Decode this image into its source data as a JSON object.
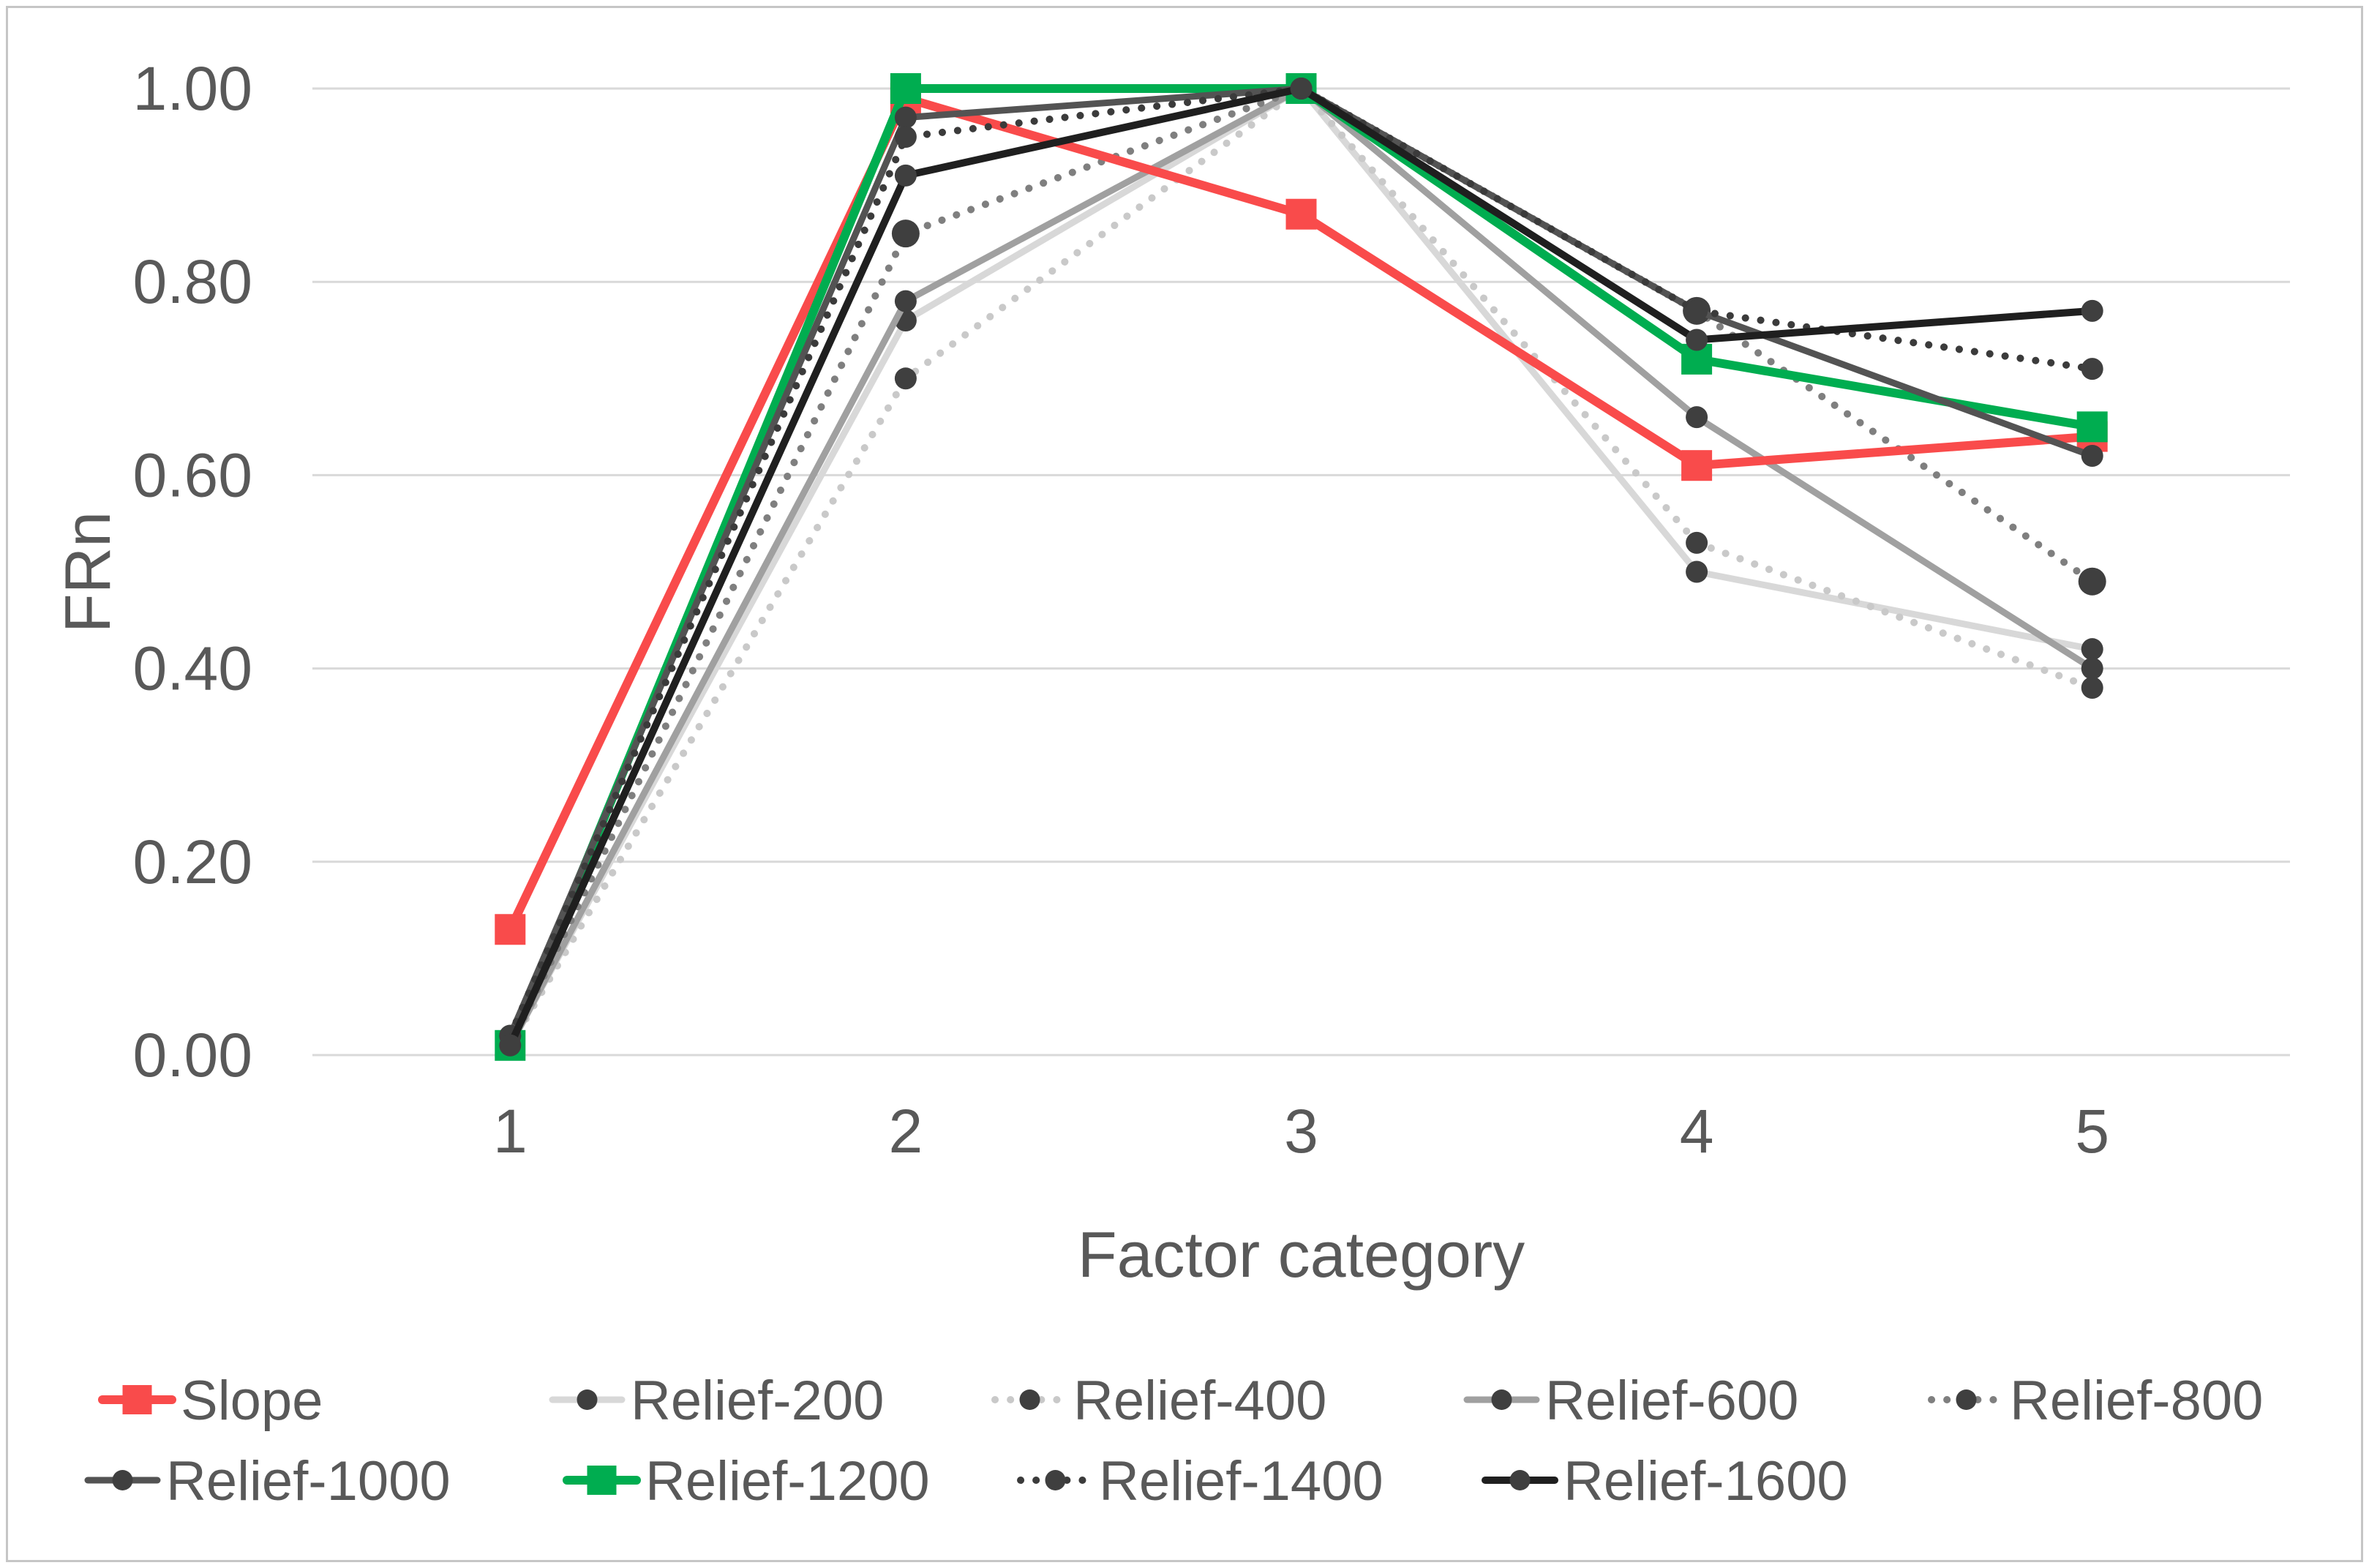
{
  "styles": {
    "grid_color": "#d9d9d9",
    "text_color": "#595959",
    "marker_color": "#3f3f3f",
    "frame_color": "#c6c6c6",
    "background": "#ffffff"
  },
  "chart_data": {
    "type": "line",
    "x": [
      1,
      2,
      3,
      4,
      5
    ],
    "xlabel": "Factor category",
    "ylabel": "FRn",
    "ylim": [
      0.0,
      1.0
    ],
    "grid": true,
    "legend_position": "bottom",
    "yticks": [
      "0.00",
      "0.20",
      "0.40",
      "0.60",
      "0.80",
      "1.00"
    ],
    "ytick_values": [
      0.0,
      0.2,
      0.4,
      0.6,
      0.8,
      1.0
    ],
    "series": [
      {
        "name": "Slope",
        "color": "#f94b4b",
        "line": "solid",
        "marker": "square",
        "values": [
          0.13,
          0.99,
          0.87,
          0.61,
          0.64
        ]
      },
      {
        "name": "Relief-200",
        "color": "#d8d8d8",
        "line": "solid",
        "marker": "circle",
        "values": [
          0.01,
          0.76,
          1.0,
          0.5,
          0.42
        ]
      },
      {
        "name": "Relief-400",
        "color": "#c9c9c9",
        "line": "dotted",
        "marker": "circle",
        "values": [
          0.01,
          0.7,
          1.0,
          0.53,
          0.38
        ]
      },
      {
        "name": "Relief-600",
        "color": "#a0a0a0",
        "line": "solid",
        "marker": "circle",
        "values": [
          0.01,
          0.78,
          1.0,
          0.66,
          0.4
        ]
      },
      {
        "name": "Relief-800",
        "color": "#7f7f7f",
        "line": "dotted",
        "marker": "circle",
        "values": [
          0.01,
          0.85,
          1.0,
          0.77,
          0.49
        ]
      },
      {
        "name": "Relief-1000",
        "color": "#535353",
        "line": "solid",
        "marker": "circle",
        "values": [
          0.02,
          0.97,
          1.0,
          0.77,
          0.62
        ]
      },
      {
        "name": "Relief-1200",
        "color": "#00ad50",
        "line": "solid",
        "marker": "square",
        "values": [
          0.01,
          1.0,
          1.0,
          0.72,
          0.65
        ]
      },
      {
        "name": "Relief-1400",
        "color": "#3b3b3b",
        "line": "dotted",
        "marker": "circle",
        "values": [
          0.02,
          0.95,
          1.0,
          0.77,
          0.71
        ]
      },
      {
        "name": "Relief-1600",
        "color": "#1f1f1f",
        "line": "solid",
        "marker": "circle",
        "values": [
          0.01,
          0.91,
          1.0,
          0.74,
          0.77
        ]
      }
    ],
    "draw_order": [
      "Relief-200",
      "Relief-400",
      "Relief-600",
      "Relief-800",
      "Slope",
      "Relief-1200",
      "Relief-1000",
      "Relief-1400",
      "Relief-1600"
    ],
    "legend_rows": [
      [
        "Slope",
        "Relief-200",
        "Relief-400",
        "Relief-600",
        "Relief-800"
      ],
      [
        "Relief-1000",
        "Relief-1200",
        "Relief-1400",
        "Relief-1600"
      ]
    ]
  }
}
